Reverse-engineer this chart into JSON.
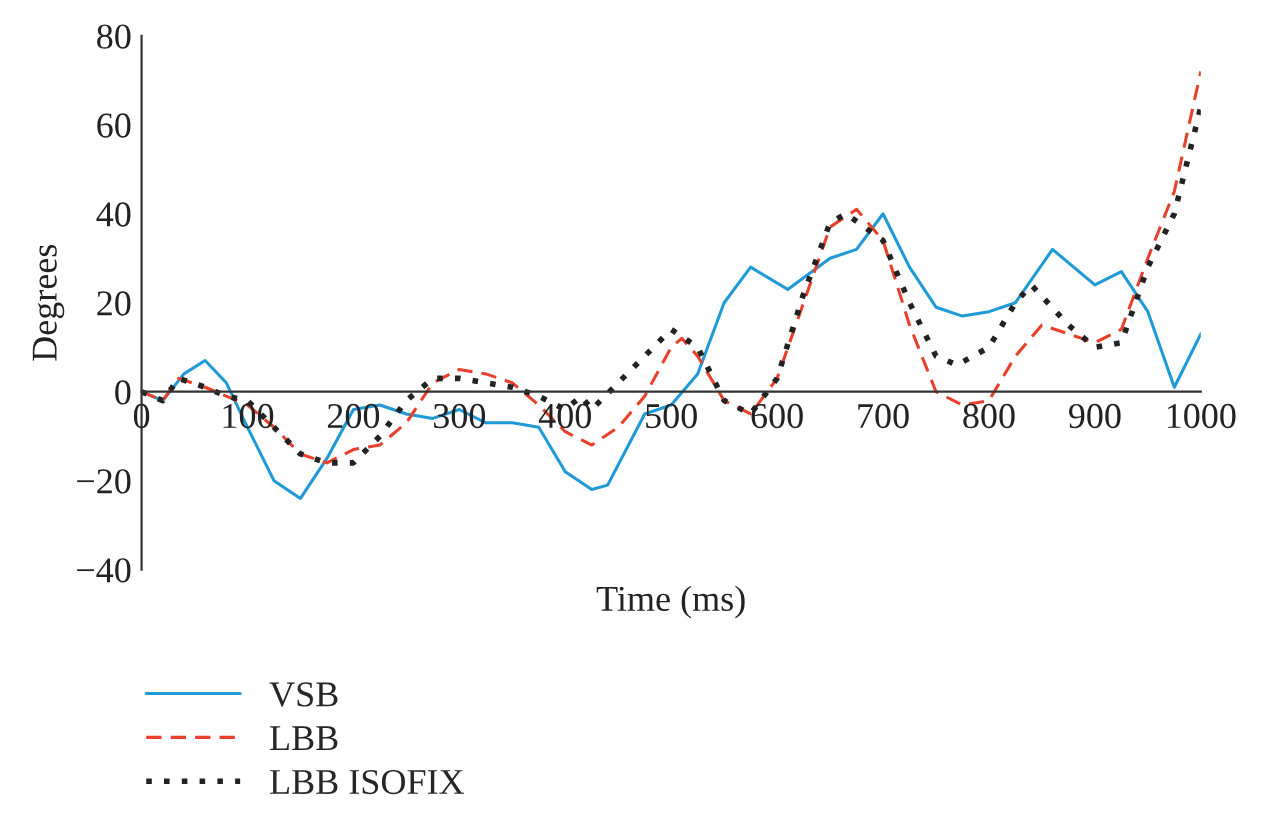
{
  "chart_data": {
    "type": "line",
    "xlabel": "Time (ms)",
    "ylabel": "Degrees",
    "xlim": [
      0,
      1000
    ],
    "xticks": [
      0,
      100,
      200,
      300,
      400,
      500,
      600,
      700,
      800,
      900,
      1000
    ],
    "ylim": [
      -40,
      80
    ],
    "yticks": [
      -40,
      -20,
      0,
      20,
      40,
      60,
      80
    ],
    "grid": false,
    "legend": "bottom",
    "series": [
      {
        "name": "VSB",
        "color": "#1f9ad6",
        "line_style": "solid",
        "x": [
          0,
          20,
          40,
          60,
          80,
          100,
          125,
          150,
          175,
          200,
          225,
          250,
          275,
          300,
          325,
          350,
          375,
          400,
          425,
          440,
          475,
          500,
          525,
          550,
          575,
          610,
          650,
          675,
          700,
          725,
          750,
          775,
          800,
          825,
          860,
          900,
          925,
          950,
          975,
          1000
        ],
        "values": [
          0,
          -2,
          4,
          7,
          2,
          -8,
          -20,
          -24,
          -15,
          -4,
          -3,
          -5,
          -6,
          -4,
          -7,
          -7,
          -8,
          -18,
          -22,
          -21,
          -5,
          -3,
          4,
          20,
          28,
          23,
          30,
          32,
          40,
          28,
          19,
          17,
          18,
          20,
          32,
          24,
          27,
          18,
          1,
          13
        ]
      },
      {
        "name": "LBB",
        "color": "#e8402a",
        "line_style": "dashed",
        "x": [
          0,
          20,
          35,
          60,
          80,
          100,
          125,
          150,
          175,
          200,
          225,
          250,
          275,
          300,
          325,
          350,
          375,
          400,
          425,
          450,
          475,
          500,
          510,
          525,
          550,
          575,
          600,
          625,
          650,
          675,
          700,
          725,
          750,
          775,
          800,
          825,
          850,
          875,
          900,
          925,
          950,
          975,
          1000
        ],
        "values": [
          0,
          -2,
          3,
          1,
          -1,
          -3,
          -8,
          -14,
          -16,
          -13,
          -12,
          -7,
          2,
          5,
          4,
          2,
          -3,
          -9,
          -12,
          -8,
          -1,
          10,
          12,
          8,
          -2,
          -5,
          3,
          20,
          37,
          41,
          34,
          15,
          0,
          -3,
          -2,
          8,
          15,
          13,
          11,
          14,
          30,
          45,
          72
        ]
      },
      {
        "name": "LBB ISOFIX",
        "color": "#222222",
        "line_style": "dotted",
        "x": [
          0,
          20,
          35,
          60,
          80,
          100,
          125,
          150,
          175,
          200,
          225,
          250,
          275,
          300,
          325,
          350,
          375,
          400,
          415,
          425,
          450,
          475,
          500,
          525,
          550,
          575,
          600,
          625,
          650,
          665,
          700,
          725,
          750,
          770,
          800,
          825,
          840,
          875,
          900,
          925,
          950,
          975,
          1000
        ],
        "values": [
          0,
          -2,
          3,
          1,
          -1,
          -2,
          -8,
          -14,
          -16,
          -16,
          -10,
          -2,
          3,
          3,
          2,
          1,
          -1,
          -4,
          -1,
          -4,
          2,
          8,
          14,
          10,
          -2,
          -5,
          3,
          22,
          38,
          40,
          34,
          20,
          8,
          6,
          10,
          20,
          24,
          15,
          10,
          11,
          28,
          40,
          64
        ]
      }
    ]
  }
}
